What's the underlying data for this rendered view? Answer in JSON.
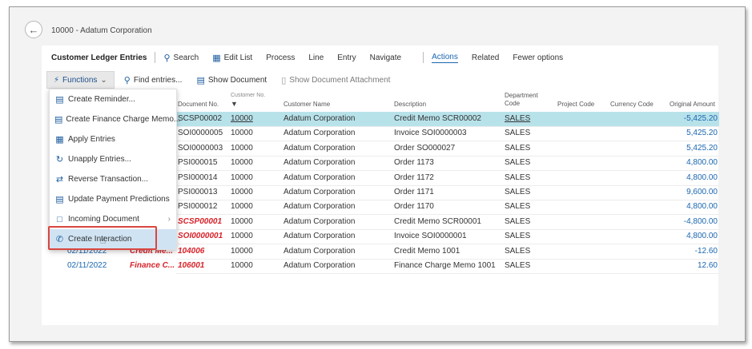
{
  "page": {
    "title": "10000 - Adatum Corporation"
  },
  "menubar": {
    "title": "Customer Ledger Entries",
    "items": [
      {
        "label": "Search",
        "icon": "search-icon"
      },
      {
        "label": "Edit List",
        "icon": "edit-list-icon"
      },
      {
        "label": "Process"
      },
      {
        "label": "Line"
      },
      {
        "label": "Entry"
      },
      {
        "label": "Navigate"
      },
      {
        "label": "Actions",
        "active": true
      },
      {
        "label": "Related"
      },
      {
        "label": "Fewer options"
      }
    ]
  },
  "toolbar": {
    "functions_label": "Functions",
    "find_entries_label": "Find entries...",
    "show_document_label": "Show Document",
    "show_attachment_label": "Show Document Attachment"
  },
  "dropdown": {
    "items": [
      {
        "label": "Create Reminder...",
        "icon": "reminder-icon"
      },
      {
        "label": "Create Finance Charge Memo...",
        "icon": "finance-charge-icon"
      },
      {
        "label": "Apply Entries",
        "icon": "apply-entries-icon"
      },
      {
        "label": "Unapply Entries...",
        "icon": "unapply-entries-icon"
      },
      {
        "label": "Reverse Transaction...",
        "icon": "reverse-transaction-icon"
      },
      {
        "label": "Update Payment Predictions",
        "icon": "payment-predictions-icon"
      },
      {
        "label": "Incoming Document",
        "icon": "incoming-document-icon",
        "submenu": true
      },
      {
        "label": "Create Interaction",
        "icon": "phone-icon",
        "highlighted": true
      }
    ]
  },
  "table": {
    "headers": {
      "document_no": "Document No.",
      "customer_no_top": "Customer No.",
      "customer_name": "Customer Name",
      "description": "Description",
      "department_code_1": "Department",
      "department_code_2": "Code",
      "project_code": "Project Code",
      "currency_code": "Currency Code",
      "original_amount": "Original Amount"
    },
    "rows": [
      {
        "date": "",
        "doctype": "",
        "document_no": "SCSP00002",
        "customer_no": "10000",
        "customer_name": "Adatum Corporation",
        "description": "Credit Memo SCR00002",
        "department": "SALES",
        "amount": "-5,425.20",
        "selected": true
      },
      {
        "date": "",
        "doctype": "",
        "document_no": "SOI0000005",
        "customer_no": "10000",
        "customer_name": "Adatum Corporation",
        "description": "Invoice SOI0000003",
        "department": "SALES",
        "amount": "5,425.20"
      },
      {
        "date": "",
        "doctype": "",
        "document_no": "SOI0000003",
        "customer_no": "10000",
        "customer_name": "Adatum Corporation",
        "description": "Order SO000027",
        "department": "SALES",
        "amount": "5,425.20"
      },
      {
        "date": "",
        "doctype": "",
        "document_no": "PSI000015",
        "customer_no": "10000",
        "customer_name": "Adatum Corporation",
        "description": "Order 1173",
        "department": "SALES",
        "amount": "4,800.00"
      },
      {
        "date": "",
        "doctype": "",
        "document_no": "PSI000014",
        "customer_no": "10000",
        "customer_name": "Adatum Corporation",
        "description": "Order 1172",
        "department": "SALES",
        "amount": "4,800.00"
      },
      {
        "date": "",
        "doctype": "",
        "document_no": "PSI000013",
        "customer_no": "10000",
        "customer_name": "Adatum Corporation",
        "description": "Order 1171",
        "department": "SALES",
        "amount": "9,600.00"
      },
      {
        "date": "",
        "doctype": "",
        "document_no": "PSI000012",
        "customer_no": "10000",
        "customer_name": "Adatum Corporation",
        "description": "Order 1170",
        "department": "SALES",
        "amount": "4,800.00"
      },
      {
        "date": "",
        "doctype": "",
        "document_no": "SCSP00001",
        "customer_no": "10000",
        "customer_name": "Adatum Corporation",
        "description": "Credit Memo SCR00001",
        "department": "SALES",
        "amount": "-4,800.00",
        "red_doc": true
      },
      {
        "date": "",
        "doctype": "",
        "document_no": "SOI0000001",
        "customer_no": "10000",
        "customer_name": "Adatum Corporation",
        "description": "Invoice SOI0000001",
        "department": "SALES",
        "amount": "4,800.00",
        "red_doc": true
      },
      {
        "date": "02/11/2022",
        "doctype": "Credit Me...",
        "document_no": "104006",
        "customer_no": "10000",
        "customer_name": "Adatum Corporation",
        "description": "Credit Memo 1001",
        "department": "SALES",
        "amount": "-12.60",
        "red_doc": true
      },
      {
        "date": "02/11/2022",
        "doctype": "Finance C...",
        "document_no": "106001",
        "customer_no": "10000",
        "customer_name": "Adatum Corporation",
        "description": "Finance Charge Memo 1001",
        "department": "SALES",
        "amount": "12.60",
        "red_doc": true
      }
    ]
  }
}
